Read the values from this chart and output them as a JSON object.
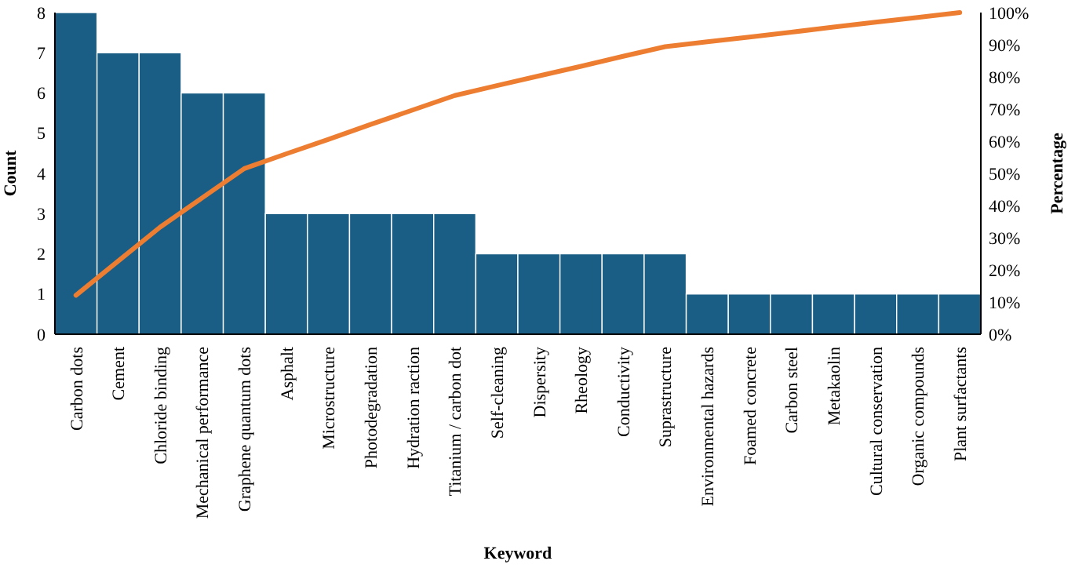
{
  "chart_data": {
    "type": "bar",
    "xlabel": "Keyword",
    "ylabel": "Count",
    "y2label": "Percentage",
    "categories": [
      "Carbon dots",
      "Cement",
      "Chloride binding",
      "Mechanical performance",
      "Graphene quantum dots",
      "Asphalt",
      "Microstructure",
      "Photodegradation",
      "Hydration raction",
      "Titanium / carbon dot",
      "Self-cleaning",
      "Dispersity",
      "Rheology",
      "Conductivity",
      "Suprastructure",
      "Environmental hazards",
      "Foamed concrete",
      "Carbon steel",
      "Metakaolin",
      "Cultural conservation",
      "Organic compounds",
      "Plant surfactants"
    ],
    "series": [
      {
        "color": "#1b5e85",
        "values": [
          8,
          7,
          7,
          6,
          6,
          3,
          3,
          3,
          3,
          3,
          2,
          2,
          2,
          2,
          2,
          1,
          1,
          1,
          1,
          1,
          1,
          1
        ]
      },
      {
        "type": "line",
        "axis": "y2",
        "color": "#ed7d31",
        "values": [
          12.1,
          22.7,
          33.3,
          42.4,
          51.5,
          56.1,
          60.6,
          65.2,
          69.7,
          74.2,
          77.3,
          80.3,
          83.3,
          86.4,
          89.4,
          90.9,
          92.4,
          93.9,
          95.5,
          97.0,
          98.5,
          100
        ]
      }
    ],
    "ylim": [
      0,
      8
    ],
    "yticks": [
      0,
      1,
      2,
      3,
      4,
      5,
      6,
      7,
      8
    ],
    "y2lim": [
      0,
      100
    ],
    "y2ticks": [
      {
        "value": 0,
        "label": "0%"
      },
      {
        "value": 10,
        "label": "10%"
      },
      {
        "value": 20,
        "label": "20%"
      },
      {
        "value": 30,
        "label": "30%"
      },
      {
        "value": 40,
        "label": "40%"
      },
      {
        "value": 50,
        "label": "50%"
      },
      {
        "value": 60,
        "label": "60%"
      },
      {
        "value": 70,
        "label": "70%"
      },
      {
        "value": 80,
        "label": "80%"
      },
      {
        "value": 90,
        "label": "90%"
      },
      {
        "value": 100,
        "label": "100%"
      }
    ],
    "grid": false
  }
}
